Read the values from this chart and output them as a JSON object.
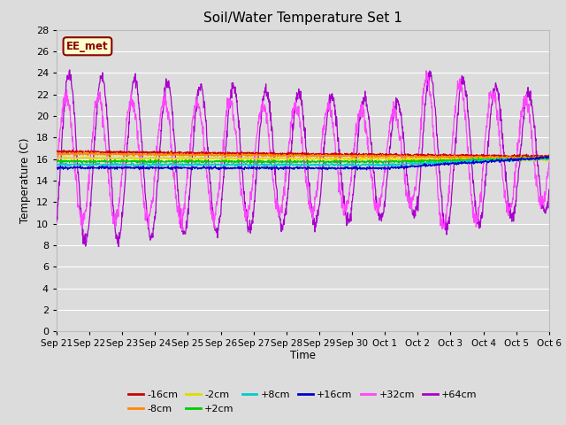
{
  "title": "Soil/Water Temperature Set 1",
  "xlabel": "Time",
  "ylabel": "Temperature (C)",
  "ylim": [
    0,
    28
  ],
  "yticks": [
    0,
    2,
    4,
    6,
    8,
    10,
    12,
    14,
    16,
    18,
    20,
    22,
    24,
    26,
    28
  ],
  "background_color": "#dcdcdc",
  "plot_bg_color": "#dcdcdc",
  "series_colors": {
    "-16cm": "#cc0000",
    "-8cm": "#ff8800",
    "-2cm": "#dddd00",
    "+2cm": "#00cc00",
    "+8cm": "#00cccc",
    "+16cm": "#0000cc",
    "+32cm": "#ff44ff",
    "+64cm": "#aa00cc"
  },
  "annotation_text": "EE_met",
  "annotation_bg": "#ffffcc",
  "annotation_border": "#8b0000",
  "n_points": 1500,
  "total_days": 15,
  "figsize": [
    6.4,
    4.8
  ],
  "dpi": 100
}
